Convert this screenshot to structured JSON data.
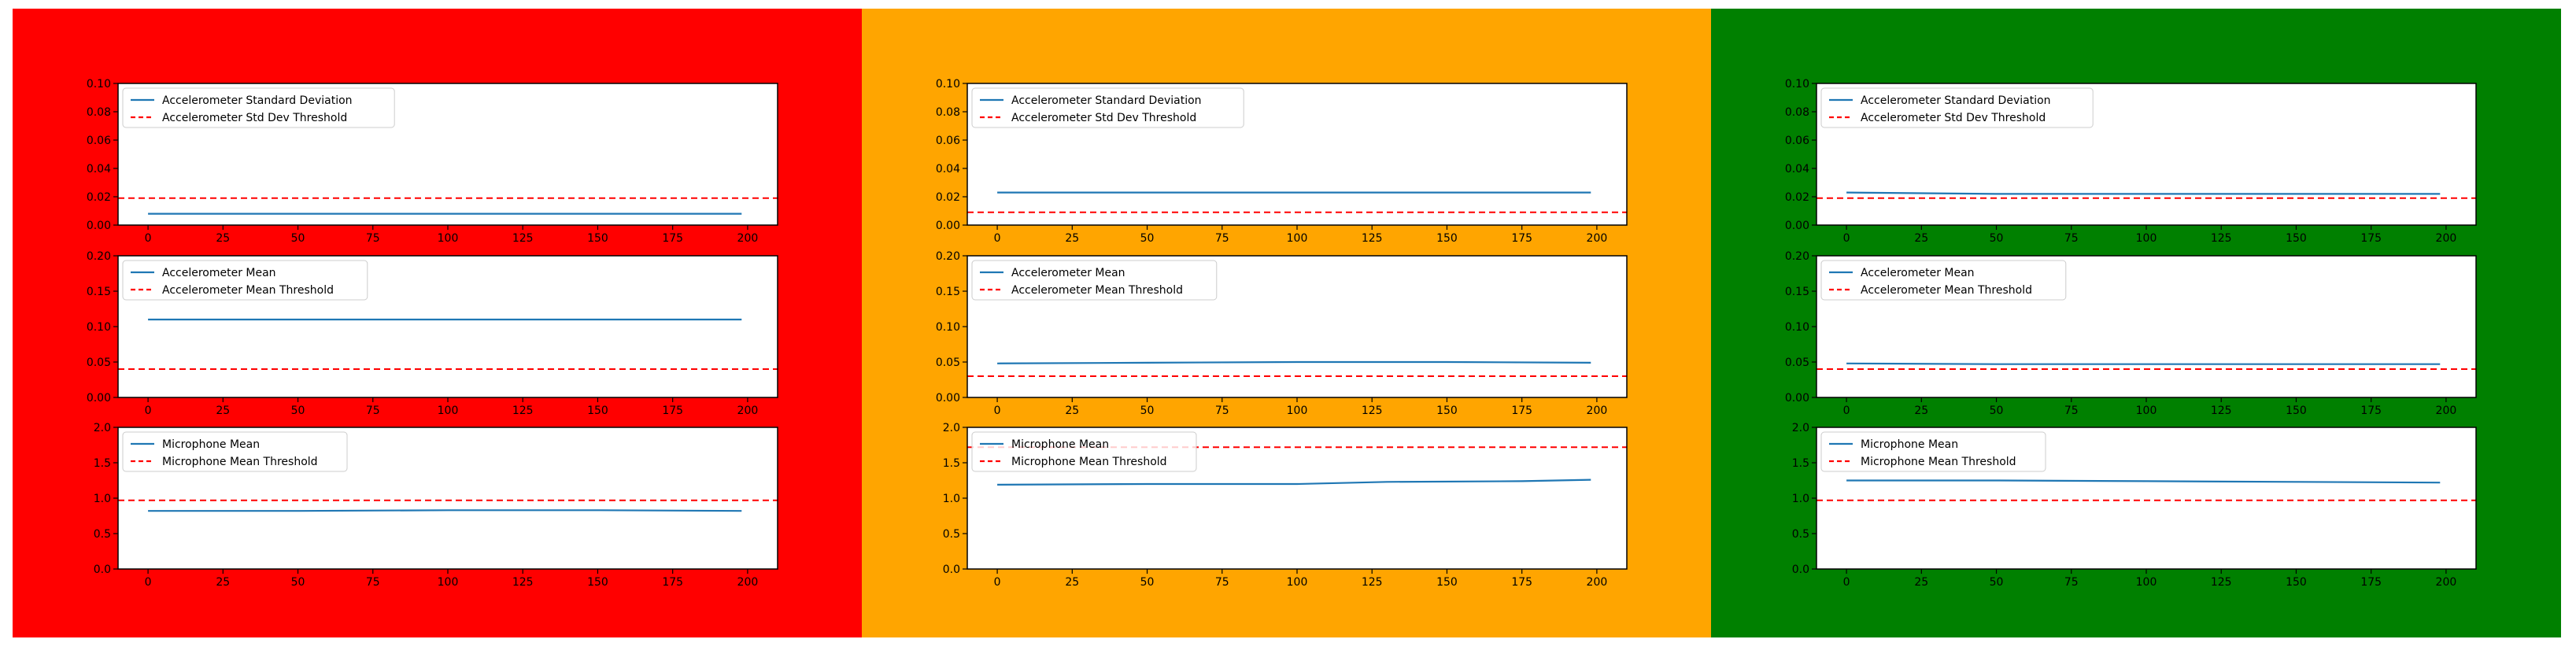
{
  "panels": [
    {
      "name": "panel-red",
      "background": "#ff0000"
    },
    {
      "name": "panel-orange",
      "background": "#ffa500"
    },
    {
      "name": "panel-green",
      "background": "#008000"
    }
  ],
  "chart_data": [
    {
      "type": "line",
      "panel": 0,
      "row": 0,
      "xticks": [
        0,
        25,
        50,
        75,
        100,
        125,
        150,
        175,
        200
      ],
      "yticks": [
        "0.00",
        "0.02",
        "0.04",
        "0.06",
        "0.08",
        "0.10"
      ],
      "xlim": [
        -10,
        210
      ],
      "ylim": [
        0,
        0.1
      ],
      "series": [
        {
          "name": "Accelerometer Standard Deviation",
          "style": "solid",
          "color": "#1f77b4",
          "x": [
            0,
            50,
            100,
            150,
            198
          ],
          "values": [
            0.008,
            0.008,
            0.008,
            0.008,
            0.008
          ]
        },
        {
          "name": "Accelerometer Std Dev Threshold",
          "style": "dashed",
          "color": "#ff0000",
          "x": [
            -10,
            210
          ],
          "values": [
            0.019,
            0.019
          ]
        }
      ],
      "legend_location": "upper left"
    },
    {
      "type": "line",
      "panel": 0,
      "row": 1,
      "xticks": [
        0,
        25,
        50,
        75,
        100,
        125,
        150,
        175,
        200
      ],
      "yticks": [
        "0.00",
        "0.05",
        "0.10",
        "0.15",
        "0.20"
      ],
      "xlim": [
        -10,
        210
      ],
      "ylim": [
        0,
        0.2
      ],
      "series": [
        {
          "name": "Accelerometer Mean",
          "style": "solid",
          "color": "#1f77b4",
          "x": [
            0,
            50,
            100,
            150,
            198
          ],
          "values": [
            0.11,
            0.11,
            0.11,
            0.11,
            0.11
          ]
        },
        {
          "name": "Accelerometer Mean Threshold",
          "style": "dashed",
          "color": "#ff0000",
          "x": [
            -10,
            210
          ],
          "values": [
            0.04,
            0.04
          ]
        }
      ],
      "legend_location": "upper left"
    },
    {
      "type": "line",
      "panel": 0,
      "row": 2,
      "xticks": [
        0,
        25,
        50,
        75,
        100,
        125,
        150,
        175,
        200
      ],
      "yticks": [
        "0.0",
        "0.5",
        "1.0",
        "1.5",
        "2.0"
      ],
      "xlim": [
        -10,
        210
      ],
      "ylim": [
        0,
        2.0
      ],
      "series": [
        {
          "name": "Microphone Mean",
          "style": "solid",
          "color": "#1f77b4",
          "x": [
            0,
            50,
            100,
            150,
            198
          ],
          "values": [
            0.82,
            0.82,
            0.83,
            0.83,
            0.82
          ]
        },
        {
          "name": "Microphone Mean Threshold",
          "style": "dashed",
          "color": "#ff0000",
          "x": [
            -10,
            210
          ],
          "values": [
            0.97,
            0.97
          ]
        }
      ],
      "legend_location": "upper left"
    },
    {
      "type": "line",
      "panel": 1,
      "row": 0,
      "xticks": [
        0,
        25,
        50,
        75,
        100,
        125,
        150,
        175,
        200
      ],
      "yticks": [
        "0.00",
        "0.02",
        "0.04",
        "0.06",
        "0.08",
        "0.10"
      ],
      "xlim": [
        -10,
        210
      ],
      "ylim": [
        0,
        0.1
      ],
      "series": [
        {
          "name": "Accelerometer Standard Deviation",
          "style": "solid",
          "color": "#1f77b4",
          "x": [
            0,
            50,
            100,
            150,
            198
          ],
          "values": [
            0.023,
            0.023,
            0.023,
            0.023,
            0.023
          ]
        },
        {
          "name": "Accelerometer Std Dev Threshold",
          "style": "dashed",
          "color": "#ff0000",
          "x": [
            -10,
            210
          ],
          "values": [
            0.009,
            0.009
          ]
        }
      ],
      "legend_location": "upper left"
    },
    {
      "type": "line",
      "panel": 1,
      "row": 1,
      "xticks": [
        0,
        25,
        50,
        75,
        100,
        125,
        150,
        175,
        200
      ],
      "yticks": [
        "0.00",
        "0.05",
        "0.10",
        "0.15",
        "0.20"
      ],
      "xlim": [
        -10,
        210
      ],
      "ylim": [
        0,
        0.2
      ],
      "series": [
        {
          "name": "Accelerometer Mean",
          "style": "solid",
          "color": "#1f77b4",
          "x": [
            0,
            50,
            100,
            150,
            198
          ],
          "values": [
            0.048,
            0.049,
            0.05,
            0.05,
            0.049
          ]
        },
        {
          "name": "Accelerometer Mean Threshold",
          "style": "dashed",
          "color": "#ff0000",
          "x": [
            -10,
            210
          ],
          "values": [
            0.03,
            0.03
          ]
        }
      ],
      "legend_location": "upper left"
    },
    {
      "type": "line",
      "panel": 1,
      "row": 2,
      "xticks": [
        0,
        25,
        50,
        75,
        100,
        125,
        150,
        175,
        200
      ],
      "yticks": [
        "0.0",
        "0.5",
        "1.0",
        "1.5",
        "2.0"
      ],
      "xlim": [
        -10,
        210
      ],
      "ylim": [
        0,
        2.0
      ],
      "series": [
        {
          "name": "Microphone Mean",
          "style": "solid",
          "color": "#1f77b4",
          "x": [
            0,
            50,
            100,
            130,
            175,
            198
          ],
          "values": [
            1.19,
            1.2,
            1.2,
            1.23,
            1.24,
            1.26
          ]
        },
        {
          "name": "Microphone Mean Threshold",
          "style": "dashed",
          "color": "#ff0000",
          "x": [
            -10,
            210
          ],
          "values": [
            1.72,
            1.72
          ]
        }
      ],
      "legend_location": "upper left"
    },
    {
      "type": "line",
      "panel": 2,
      "row": 0,
      "xticks": [
        0,
        25,
        50,
        75,
        100,
        125,
        150,
        175,
        200
      ],
      "yticks": [
        "0.00",
        "0.02",
        "0.04",
        "0.06",
        "0.08",
        "0.10"
      ],
      "xlim": [
        -10,
        210
      ],
      "ylim": [
        0,
        0.1
      ],
      "series": [
        {
          "name": "Accelerometer Standard Deviation",
          "style": "solid",
          "color": "#1f77b4",
          "x": [
            0,
            50,
            100,
            150,
            198
          ],
          "values": [
            0.023,
            0.022,
            0.022,
            0.022,
            0.022
          ]
        },
        {
          "name": "Accelerometer Std Dev Threshold",
          "style": "dashed",
          "color": "#ff0000",
          "x": [
            -10,
            210
          ],
          "values": [
            0.019,
            0.019
          ]
        }
      ],
      "legend_location": "upper left"
    },
    {
      "type": "line",
      "panel": 2,
      "row": 1,
      "xticks": [
        0,
        25,
        50,
        75,
        100,
        125,
        150,
        175,
        200
      ],
      "yticks": [
        "0.00",
        "0.05",
        "0.10",
        "0.15",
        "0.20"
      ],
      "xlim": [
        -10,
        210
      ],
      "ylim": [
        0,
        0.2
      ],
      "series": [
        {
          "name": "Accelerometer Mean",
          "style": "solid",
          "color": "#1f77b4",
          "x": [
            0,
            50,
            100,
            150,
            198
          ],
          "values": [
            0.048,
            0.047,
            0.047,
            0.047,
            0.047
          ]
        },
        {
          "name": "Accelerometer Mean Threshold",
          "style": "dashed",
          "color": "#ff0000",
          "x": [
            -10,
            210
          ],
          "values": [
            0.04,
            0.04
          ]
        }
      ],
      "legend_location": "upper left"
    },
    {
      "type": "line",
      "panel": 2,
      "row": 2,
      "xticks": [
        0,
        25,
        50,
        75,
        100,
        125,
        150,
        175,
        200
      ],
      "yticks": [
        "0.0",
        "0.5",
        "1.0",
        "1.5",
        "2.0"
      ],
      "xlim": [
        -10,
        210
      ],
      "ylim": [
        0,
        2.0
      ],
      "series": [
        {
          "name": "Microphone Mean",
          "style": "solid",
          "color": "#1f77b4",
          "x": [
            0,
            50,
            100,
            150,
            198
          ],
          "values": [
            1.25,
            1.25,
            1.24,
            1.23,
            1.22
          ]
        },
        {
          "name": "Microphone Mean Threshold",
          "style": "dashed",
          "color": "#ff0000",
          "x": [
            -10,
            210
          ],
          "values": [
            0.97,
            0.97
          ]
        }
      ],
      "legend_location": "upper left"
    }
  ]
}
